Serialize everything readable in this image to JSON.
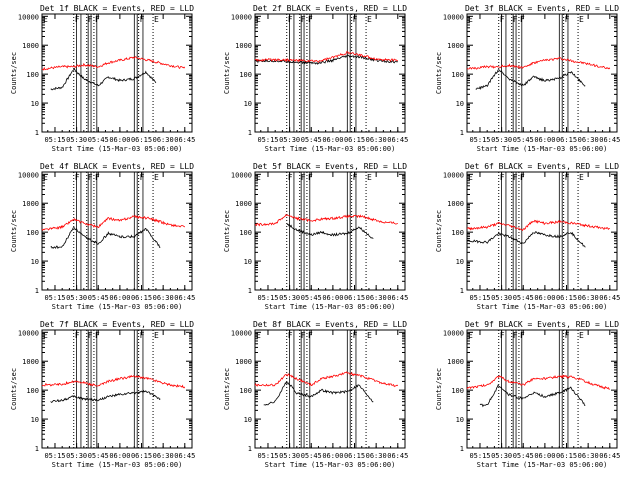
{
  "panel_meta": {
    "ylabel": "Counts/sec",
    "xlabel": "Start Time (15-Mar-03 05:06:00)",
    "y_ticks": [
      "1",
      "10",
      "100",
      "1000",
      "10000"
    ],
    "x_ticks": [
      "05:15",
      "05:30",
      "05:45",
      "06:00",
      "06:15",
      "06:30",
      "06:45"
    ],
    "xlim": [
      "05:06",
      "06:50"
    ],
    "ylim": [
      1,
      12000
    ],
    "y_scale": "log",
    "colors": {
      "events": "#000000",
      "lld": "#ff0000"
    }
  },
  "chart_data": [
    {
      "type": "line",
      "title": "Det 1f BLACK = Events, RED = LLD",
      "markers": [
        {
          "time": "05:06",
          "label": "E"
        },
        {
          "time": "05:28",
          "label": "F"
        },
        {
          "time": "05:37",
          "label": "F"
        },
        {
          "time": "05:42",
          "label": "F"
        },
        {
          "time": "06:13",
          "label": "F"
        },
        {
          "time": "06:23",
          "label": "E"
        }
      ],
      "series": [
        {
          "name": "Events",
          "x": [
            "05:12",
            "05:20",
            "05:28",
            "05:35",
            "05:45",
            "05:52",
            "06:00",
            "06:10",
            "06:18",
            "06:25"
          ],
          "values": [
            30,
            35,
            150,
            70,
            40,
            80,
            60,
            70,
            120,
            50
          ]
        },
        {
          "name": "LLD",
          "x": [
            "05:06",
            "05:20",
            "05:28",
            "05:35",
            "05:45",
            "05:52",
            "06:00",
            "06:10",
            "06:20",
            "06:35",
            "06:45"
          ],
          "values": [
            150,
            180,
            180,
            210,
            180,
            250,
            300,
            380,
            300,
            200,
            160
          ]
        }
      ]
    },
    {
      "type": "line",
      "title": "Det 2f BLACK = Events, RED = LLD",
      "markers": [
        {
          "time": "05:06",
          "label": "E"
        },
        {
          "time": "05:28",
          "label": "F"
        },
        {
          "time": "05:37",
          "label": "F"
        },
        {
          "time": "05:42",
          "label": "F"
        },
        {
          "time": "06:13",
          "label": "F"
        },
        {
          "time": "06:23",
          "label": "E"
        }
      ],
      "series": [
        {
          "name": "Events",
          "x": [
            "05:06",
            "05:20",
            "05:35",
            "05:50",
            "06:00",
            "06:10",
            "06:20",
            "06:30",
            "06:45"
          ],
          "values": [
            280,
            290,
            260,
            240,
            300,
            420,
            380,
            300,
            260
          ]
        },
        {
          "name": "LLD",
          "x": [
            "05:06",
            "05:20",
            "05:35",
            "05:50",
            "06:00",
            "06:10",
            "06:20",
            "06:30",
            "06:45"
          ],
          "values": [
            300,
            320,
            300,
            280,
            380,
            550,
            450,
            330,
            300
          ]
        }
      ]
    },
    {
      "type": "line",
      "title": "Det 3f BLACK = Events, RED = LLD",
      "markers": [
        {
          "time": "05:06",
          "label": "E"
        },
        {
          "time": "05:28",
          "label": "F"
        },
        {
          "time": "05:37",
          "label": "F"
        },
        {
          "time": "05:42",
          "label": "F"
        },
        {
          "time": "06:13",
          "label": "F"
        },
        {
          "time": "06:23",
          "label": "E"
        }
      ],
      "series": [
        {
          "name": "Events",
          "x": [
            "05:12",
            "05:20",
            "05:28",
            "05:35",
            "05:45",
            "05:52",
            "06:00",
            "06:10",
            "06:18",
            "06:28"
          ],
          "values": [
            30,
            40,
            150,
            70,
            40,
            80,
            60,
            70,
            120,
            40
          ]
        },
        {
          "name": "LLD",
          "x": [
            "05:06",
            "05:20",
            "05:28",
            "05:35",
            "05:45",
            "05:52",
            "06:00",
            "06:10",
            "06:20",
            "06:35",
            "06:45"
          ],
          "values": [
            150,
            180,
            180,
            200,
            170,
            240,
            300,
            350,
            280,
            200,
            150
          ]
        }
      ]
    },
    {
      "type": "line",
      "title": "Det 4f BLACK = Events, RED = LLD",
      "markers": [
        {
          "time": "05:06",
          "label": "E"
        },
        {
          "time": "05:28",
          "label": "F"
        },
        {
          "time": "05:37",
          "label": "F"
        },
        {
          "time": "05:42",
          "label": "F"
        },
        {
          "time": "06:13",
          "label": "F"
        },
        {
          "time": "06:23",
          "label": "E"
        }
      ],
      "series": [
        {
          "name": "Events",
          "x": [
            "05:12",
            "05:20",
            "05:28",
            "05:35",
            "05:45",
            "05:52",
            "06:00",
            "06:10",
            "06:18",
            "06:28"
          ],
          "values": [
            30,
            30,
            150,
            70,
            40,
            90,
            70,
            70,
            130,
            30
          ]
        },
        {
          "name": "LLD",
          "x": [
            "05:06",
            "05:20",
            "05:28",
            "05:35",
            "05:45",
            "05:52",
            "06:00",
            "06:10",
            "06:20",
            "06:35",
            "06:45"
          ],
          "values": [
            120,
            150,
            280,
            200,
            150,
            300,
            250,
            350,
            300,
            180,
            150
          ]
        }
      ]
    },
    {
      "type": "line",
      "title": "Det 5f BLACK = Events, RED = LLD",
      "markers": [
        {
          "time": "05:06",
          "label": "E"
        },
        {
          "time": "05:28",
          "label": "F"
        },
        {
          "time": "05:37",
          "label": "F"
        },
        {
          "time": "05:42",
          "label": "F"
        },
        {
          "time": "06:13",
          "label": "F"
        },
        {
          "time": "06:23",
          "label": "E"
        }
      ],
      "series": [
        {
          "name": "Events",
          "x": [
            "05:28",
            "05:35",
            "05:45",
            "05:52",
            "06:00",
            "06:10",
            "06:18",
            "06:28"
          ],
          "values": [
            200,
            120,
            80,
            100,
            80,
            90,
            150,
            60
          ]
        },
        {
          "name": "LLD",
          "x": [
            "05:06",
            "05:20",
            "05:28",
            "05:35",
            "05:45",
            "05:52",
            "06:00",
            "06:10",
            "06:20",
            "06:35",
            "06:45"
          ],
          "values": [
            180,
            200,
            400,
            300,
            250,
            280,
            300,
            350,
            350,
            220,
            200
          ]
        }
      ]
    },
    {
      "type": "line",
      "title": "Det 6f BLACK = Events, RED = LLD",
      "markers": [
        {
          "time": "05:06",
          "label": "E"
        },
        {
          "time": "05:28",
          "label": "F"
        },
        {
          "time": "05:37",
          "label": "F"
        },
        {
          "time": "05:42",
          "label": "F"
        },
        {
          "time": "06:13",
          "label": "F"
        },
        {
          "time": "06:23",
          "label": "E"
        }
      ],
      "series": [
        {
          "name": "Events",
          "x": [
            "05:06",
            "05:20",
            "05:28",
            "05:35",
            "05:45",
            "05:52",
            "06:00",
            "06:10",
            "06:18",
            "06:28"
          ],
          "values": [
            50,
            45,
            90,
            70,
            40,
            100,
            80,
            70,
            100,
            30
          ]
        },
        {
          "name": "LLD",
          "x": [
            "05:06",
            "05:20",
            "05:28",
            "05:35",
            "05:45",
            "05:52",
            "06:00",
            "06:10",
            "06:20",
            "06:35",
            "06:45"
          ],
          "values": [
            130,
            150,
            200,
            170,
            120,
            250,
            200,
            230,
            200,
            150,
            130
          ]
        }
      ]
    },
    {
      "type": "line",
      "title": "Det 7f BLACK = Events, RED = LLD",
      "markers": [
        {
          "time": "05:06",
          "label": "E"
        },
        {
          "time": "05:28",
          "label": "F"
        },
        {
          "time": "05:37",
          "label": "F"
        },
        {
          "time": "05:42",
          "label": "F"
        },
        {
          "time": "06:13",
          "label": "F"
        },
        {
          "time": "06:23",
          "label": "E"
        }
      ],
      "series": [
        {
          "name": "Events",
          "x": [
            "05:12",
            "05:20",
            "05:28",
            "05:35",
            "05:45",
            "05:52",
            "06:00",
            "06:10",
            "06:18",
            "06:28"
          ],
          "values": [
            40,
            45,
            60,
            50,
            45,
            60,
            70,
            80,
            90,
            50
          ]
        },
        {
          "name": "LLD",
          "x": [
            "05:06",
            "05:20",
            "05:28",
            "05:35",
            "05:45",
            "05:52",
            "06:00",
            "06:10",
            "06:20",
            "06:35",
            "06:45"
          ],
          "values": [
            150,
            160,
            200,
            180,
            140,
            200,
            250,
            300,
            250,
            150,
            130
          ]
        }
      ]
    },
    {
      "type": "line",
      "title": "Det 8f BLACK = Events, RED = LLD",
      "markers": [
        {
          "time": "05:06",
          "label": "E"
        },
        {
          "time": "05:28",
          "label": "F"
        },
        {
          "time": "05:37",
          "label": "F"
        },
        {
          "time": "05:42",
          "label": "F"
        },
        {
          "time": "06:13",
          "label": "F"
        },
        {
          "time": "06:23",
          "label": "E"
        }
      ],
      "series": [
        {
          "name": "Events",
          "x": [
            "05:12",
            "05:20",
            "05:28",
            "05:35",
            "05:45",
            "05:52",
            "06:00",
            "06:10",
            "06:18",
            "06:28"
          ],
          "values": [
            30,
            40,
            200,
            80,
            60,
            100,
            80,
            90,
            150,
            40
          ]
        },
        {
          "name": "LLD",
          "x": [
            "05:06",
            "05:20",
            "05:28",
            "05:35",
            "05:45",
            "05:52",
            "06:00",
            "06:10",
            "06:20",
            "06:35",
            "06:45"
          ],
          "values": [
            150,
            150,
            350,
            250,
            150,
            250,
            300,
            400,
            300,
            170,
            140
          ]
        }
      ]
    },
    {
      "type": "line",
      "title": "Det 9f BLACK = Events, RED = LLD",
      "markers": [
        {
          "time": "05:06",
          "label": "E"
        },
        {
          "time": "05:28",
          "label": "F"
        },
        {
          "time": "05:37",
          "label": "F"
        },
        {
          "time": "05:42",
          "label": "F"
        },
        {
          "time": "06:13",
          "label": "F"
        },
        {
          "time": "06:23",
          "label": "E"
        }
      ],
      "series": [
        {
          "name": "Events",
          "x": [
            "05:15",
            "05:20",
            "05:28",
            "05:35",
            "05:45",
            "05:52",
            "06:00",
            "06:10",
            "06:18",
            "06:28"
          ],
          "values": [
            30,
            30,
            150,
            70,
            50,
            80,
            60,
            80,
            120,
            30
          ]
        },
        {
          "name": "LLD",
          "x": [
            "05:06",
            "05:20",
            "05:28",
            "05:35",
            "05:45",
            "05:52",
            "06:00",
            "06:10",
            "06:20",
            "06:35",
            "06:45"
          ],
          "values": [
            120,
            150,
            300,
            200,
            150,
            250,
            250,
            300,
            280,
            150,
            110
          ]
        }
      ]
    }
  ]
}
